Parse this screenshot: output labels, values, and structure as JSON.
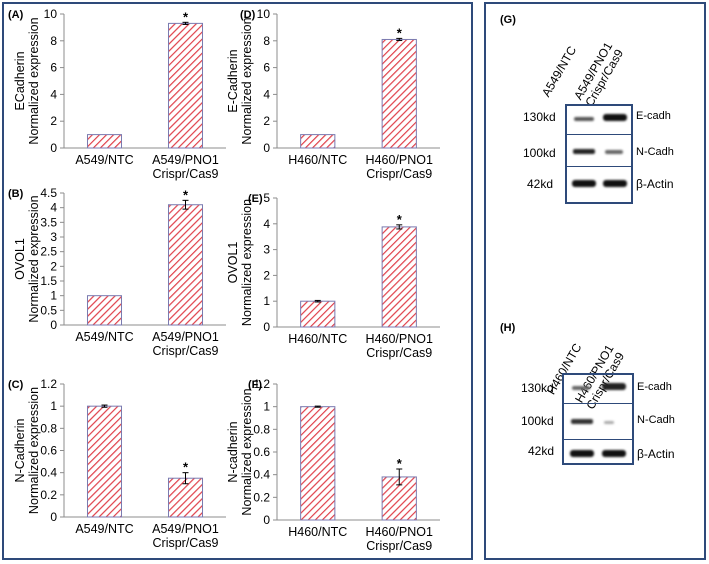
{
  "colors": {
    "bar_fill": "#ffffff",
    "bar_hatch": "#e0404a",
    "bar_edge": "#7a7ab0",
    "frame": "#2e4a7a"
  },
  "chart_data": [
    {
      "id": "A",
      "panel_label": "(A)",
      "type": "bar",
      "ylabel_lines": [
        "ECadherin",
        "Normalized expression"
      ],
      "categories": [
        "A549/NTC",
        "A549/PNO1 Crispr/Cas9"
      ],
      "values": [
        1.0,
        9.3
      ],
      "errors": [
        0.02,
        0.08
      ],
      "significant": [
        false,
        true
      ],
      "ylim": [
        0,
        10
      ],
      "yticks": [
        "0",
        "2",
        "4",
        "6",
        "8",
        "10"
      ]
    },
    {
      "id": "D",
      "panel_label": "(D)",
      "type": "bar",
      "ylabel_lines": [
        "E-Cadherin",
        "Normalized expression"
      ],
      "categories": [
        "H460/NTC",
        "H460/PNO1 Crispr/Cas9"
      ],
      "values": [
        1.0,
        8.1
      ],
      "errors": [
        0.02,
        0.08
      ],
      "significant": [
        false,
        true
      ],
      "ylim": [
        0,
        10
      ],
      "yticks": [
        "0",
        "2",
        "4",
        "6",
        "8",
        "10"
      ]
    },
    {
      "id": "B",
      "panel_label": "(B)",
      "type": "bar",
      "ylabel_lines": [
        "OVOL1",
        "Normalized expression"
      ],
      "categories": [
        "A549/NTC",
        "A549/PNO1 Crispr/Cas9"
      ],
      "values": [
        1.0,
        4.1
      ],
      "errors": [
        0.01,
        0.15
      ],
      "significant": [
        false,
        true
      ],
      "ylim": [
        0,
        4.5
      ],
      "yticks": [
        "0",
        "0.5",
        "1",
        "1.5",
        "2",
        "2.5",
        "3",
        "3.5",
        "4",
        "4.5"
      ]
    },
    {
      "id": "E",
      "panel_label": "(E)",
      "type": "bar",
      "ylabel_lines": [
        "OVOL1",
        "Normalized expression"
      ],
      "categories": [
        "H460/NTC",
        "H460/PNO1 Crispr/Cas9"
      ],
      "values": [
        1.0,
        3.88
      ],
      "errors": [
        0.03,
        0.08
      ],
      "significant": [
        false,
        true
      ],
      "ylim": [
        0,
        5
      ],
      "yticks": [
        "0",
        "1",
        "2",
        "3",
        "4",
        "5"
      ]
    },
    {
      "id": "C",
      "panel_label": "(C)",
      "type": "bar",
      "ylabel_lines": [
        "N-Cadherin",
        "Normalized expression"
      ],
      "categories": [
        "A549/NTC",
        "A549/PNO1 Crispr/Cas9"
      ],
      "values": [
        1.0,
        0.35
      ],
      "errors": [
        0.01,
        0.05
      ],
      "significant": [
        false,
        true
      ],
      "ylim": [
        0,
        1.2
      ],
      "yticks": [
        "0",
        "0.2",
        "0.4",
        "0.6",
        "0.8",
        "1",
        "1.2"
      ]
    },
    {
      "id": "F",
      "panel_label": "(F)",
      "type": "bar",
      "ylabel_lines": [
        "N-cadherin",
        "Normalized expression"
      ],
      "categories": [
        "H460/NTC",
        "H460/PNO1 Crispr/Cas9"
      ],
      "values": [
        1.0,
        0.38
      ],
      "errors": [
        0.005,
        0.07
      ],
      "significant": [
        false,
        true
      ],
      "ylim": [
        0,
        1.2
      ],
      "yticks": [
        "0",
        "0.2",
        "0.4",
        "0.6",
        "0.8",
        "1",
        "1.2"
      ]
    }
  ],
  "significance_marker": "*",
  "blots": [
    {
      "id": "G",
      "panel_label": "(G)",
      "lanes": [
        "A549/NTC",
        "A549/PNO1 Crispr/Cas9"
      ],
      "rows": [
        {
          "kd": "130kd",
          "protein": "E-cadh"
        },
        {
          "kd": "100kd",
          "protein": "N-Cadh"
        },
        {
          "kd": "42kd",
          "protein": "β-Actin"
        }
      ]
    },
    {
      "id": "H",
      "panel_label": "(H)",
      "lanes": [
        "H460/NTC",
        "H460/PNO1 Crispr/Cas9"
      ],
      "rows": [
        {
          "kd": "130kd",
          "protein": "E-cadh"
        },
        {
          "kd": "100kd",
          "protein": "N-Cadh"
        },
        {
          "kd": "42kd",
          "protein": "β-Actin"
        }
      ]
    }
  ]
}
